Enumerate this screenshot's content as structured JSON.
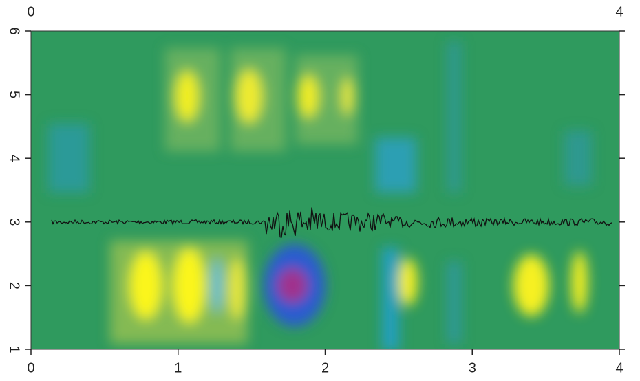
{
  "chart_data": {
    "type": "heatmap",
    "xlim": [
      0,
      4
    ],
    "xticks": [
      0,
      1,
      2,
      3,
      4
    ],
    "ylim": [
      1,
      6
    ],
    "yticks": [
      1,
      2,
      3,
      4,
      5,
      6
    ],
    "x2ticks": [
      0,
      4
    ]
  }
}
